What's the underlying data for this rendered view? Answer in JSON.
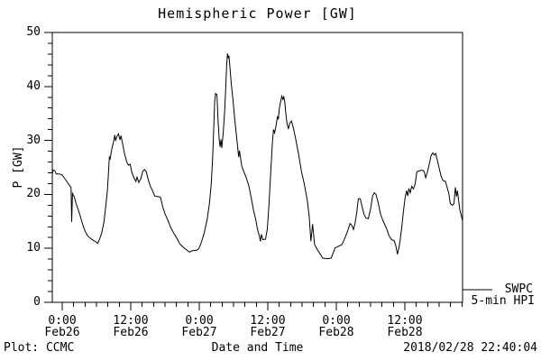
{
  "title": "Hemispheric Power [GW]",
  "footer": {
    "left": "Plot: CCMC",
    "center": "Date and Time",
    "right": "2018/02/28 22:40:04"
  },
  "legend": {
    "series": "SWPC",
    "sub": "5-min HPI"
  },
  "colors": {
    "line": "#000000",
    "axis": "#000000",
    "background": "#ffffff",
    "text": "#000000"
  },
  "chart_data": {
    "type": "line",
    "title": "Hemispheric Power [GW]",
    "xlabel": "Date and Time",
    "ylabel": "P [GW]",
    "ylim": [
      0,
      50
    ],
    "y_major_ticks": [
      0,
      10,
      20,
      30,
      40,
      50
    ],
    "y_minor_step": 2,
    "x_range_hours": [
      -1.74,
      70.1
    ],
    "x_unit": "hours since 2018-02-26 00:00 UT",
    "x_major_ticks": [
      {
        "hour": 0,
        "time": "0:00",
        "date": "Feb26"
      },
      {
        "hour": 12,
        "time": "12:00",
        "date": "Feb26"
      },
      {
        "hour": 24,
        "time": "0:00",
        "date": "Feb27"
      },
      {
        "hour": 36,
        "time": "12:00",
        "date": "Feb27"
      },
      {
        "hour": 48,
        "time": "0:00",
        "date": "Feb28"
      },
      {
        "hour": 60,
        "time": "12:00",
        "date": "Feb28"
      }
    ],
    "x_minor_step_hours": 2,
    "grid": false,
    "legend_position": "outside-right-bottom",
    "series": [
      {
        "name": "SWPC 5-min HPI",
        "points": [
          [
            -1.74,
            23.8
          ],
          [
            -1.6,
            24.5
          ],
          [
            -1.3,
            24.4
          ],
          [
            -1.05,
            23.8
          ],
          [
            -0.5,
            23.8
          ],
          [
            0.0,
            23.6
          ],
          [
            0.4,
            23.0
          ],
          [
            0.8,
            22.4
          ],
          [
            1.2,
            21.8
          ],
          [
            1.45,
            21.4
          ],
          [
            1.55,
            21.3
          ],
          [
            1.65,
            14.9
          ],
          [
            1.8,
            20.2
          ],
          [
            2.1,
            19.6
          ],
          [
            2.4,
            18.4
          ],
          [
            2.8,
            17.2
          ],
          [
            3.2,
            15.8
          ],
          [
            3.6,
            14.4
          ],
          [
            4.0,
            13.2
          ],
          [
            4.4,
            12.4
          ],
          [
            4.9,
            11.9
          ],
          [
            5.4,
            11.5
          ],
          [
            5.9,
            11.2
          ],
          [
            6.2,
            10.9
          ],
          [
            6.5,
            11.6
          ],
          [
            6.9,
            12.8
          ],
          [
            7.3,
            14.8
          ],
          [
            7.6,
            17.5
          ],
          [
            7.9,
            20.5
          ],
          [
            8.1,
            24.0
          ],
          [
            8.25,
            26.9
          ],
          [
            8.4,
            26.6
          ],
          [
            8.7,
            28.5
          ],
          [
            9.0,
            29.8
          ],
          [
            9.2,
            31.0
          ],
          [
            9.35,
            29.9
          ],
          [
            9.55,
            30.7
          ],
          [
            9.85,
            31.2
          ],
          [
            10.1,
            30.1
          ],
          [
            10.3,
            30.9
          ],
          [
            10.6,
            29.3
          ],
          [
            10.9,
            27.6
          ],
          [
            11.3,
            26.0
          ],
          [
            11.6,
            25.4
          ],
          [
            11.9,
            25.6
          ],
          [
            12.2,
            24.0
          ],
          [
            12.6,
            23.0
          ],
          [
            12.9,
            22.4
          ],
          [
            13.1,
            23.2
          ],
          [
            13.4,
            22.2
          ],
          [
            13.8,
            23.0
          ],
          [
            14.1,
            24.3
          ],
          [
            14.4,
            24.6
          ],
          [
            14.7,
            24.3
          ],
          [
            15.0,
            23.0
          ],
          [
            15.4,
            21.6
          ],
          [
            15.8,
            20.7
          ],
          [
            16.2,
            19.7
          ],
          [
            16.7,
            19.6
          ],
          [
            17.2,
            19.5
          ],
          [
            17.6,
            17.7
          ],
          [
            18.0,
            16.4
          ],
          [
            18.5,
            15.2
          ],
          [
            19.0,
            13.9
          ],
          [
            19.5,
            12.9
          ],
          [
            20.0,
            12.0
          ],
          [
            20.6,
            10.8
          ],
          [
            21.2,
            10.2
          ],
          [
            21.8,
            9.7
          ],
          [
            22.3,
            9.3
          ],
          [
            22.8,
            9.6
          ],
          [
            23.4,
            9.6
          ],
          [
            23.9,
            9.9
          ],
          [
            24.4,
            11.2
          ],
          [
            24.9,
            13.0
          ],
          [
            25.4,
            15.5
          ],
          [
            25.8,
            18.5
          ],
          [
            26.1,
            22.0
          ],
          [
            26.35,
            27.0
          ],
          [
            26.55,
            33.0
          ],
          [
            26.7,
            37.3
          ],
          [
            26.85,
            38.7
          ],
          [
            27.1,
            38.5
          ],
          [
            27.3,
            33.5
          ],
          [
            27.5,
            30.0
          ],
          [
            27.65,
            28.8
          ],
          [
            27.8,
            30.2
          ],
          [
            27.95,
            28.6
          ],
          [
            28.2,
            31.5
          ],
          [
            28.45,
            35.5
          ],
          [
            28.65,
            40.0
          ],
          [
            28.8,
            44.0
          ],
          [
            28.95,
            46.1
          ],
          [
            29.1,
            45.2
          ],
          [
            29.2,
            45.7
          ],
          [
            29.35,
            43.8
          ],
          [
            29.6,
            40.5
          ],
          [
            29.9,
            37.5
          ],
          [
            30.2,
            34.0
          ],
          [
            30.5,
            31.0
          ],
          [
            30.75,
            28.4
          ],
          [
            30.9,
            26.9
          ],
          [
            31.05,
            28.1
          ],
          [
            31.2,
            26.9
          ],
          [
            31.45,
            25.2
          ],
          [
            31.8,
            24.2
          ],
          [
            32.2,
            23.2
          ],
          [
            32.7,
            21.5
          ],
          [
            33.1,
            19.4
          ],
          [
            33.5,
            17.0
          ],
          [
            33.9,
            15.3
          ],
          [
            34.2,
            13.5
          ],
          [
            34.5,
            12.4
          ],
          [
            34.7,
            11.3
          ],
          [
            34.9,
            12.6
          ],
          [
            35.15,
            11.6
          ],
          [
            35.6,
            11.7
          ],
          [
            35.9,
            13.5
          ],
          [
            36.2,
            18.0
          ],
          [
            36.5,
            24.0
          ],
          [
            36.8,
            29.5
          ],
          [
            37.0,
            32.0
          ],
          [
            37.2,
            31.4
          ],
          [
            37.45,
            32.8
          ],
          [
            37.7,
            34.5
          ],
          [
            37.85,
            33.9
          ],
          [
            38.0,
            35.8
          ],
          [
            38.2,
            36.9
          ],
          [
            38.45,
            38.2
          ],
          [
            38.65,
            37.6
          ],
          [
            38.8,
            38.2
          ],
          [
            39.0,
            36.9
          ],
          [
            39.15,
            35.1
          ],
          [
            39.35,
            33.3
          ],
          [
            39.6,
            32.1
          ],
          [
            39.85,
            33.2
          ],
          [
            40.15,
            33.6
          ],
          [
            40.5,
            32.2
          ],
          [
            40.9,
            30.2
          ],
          [
            41.4,
            27.4
          ],
          [
            41.9,
            24.2
          ],
          [
            42.4,
            21.9
          ],
          [
            42.9,
            19.0
          ],
          [
            43.25,
            16.0
          ],
          [
            43.55,
            11.3
          ],
          [
            43.85,
            14.5
          ],
          [
            44.2,
            10.7
          ],
          [
            44.6,
            9.9
          ],
          [
            45.2,
            8.9
          ],
          [
            45.6,
            8.2
          ],
          [
            46.4,
            8.1
          ],
          [
            47.1,
            8.2
          ],
          [
            47.5,
            9.3
          ],
          [
            47.8,
            10.1
          ],
          [
            48.4,
            10.4
          ],
          [
            49.0,
            10.7
          ],
          [
            49.5,
            11.9
          ],
          [
            50.0,
            13.3
          ],
          [
            50.4,
            14.6
          ],
          [
            50.7,
            14.3
          ],
          [
            51.0,
            13.5
          ],
          [
            51.25,
            14.5
          ],
          [
            51.6,
            16.8
          ],
          [
            51.85,
            19.2
          ],
          [
            52.2,
            19.2
          ],
          [
            52.5,
            17.8
          ],
          [
            52.85,
            16.3
          ],
          [
            53.2,
            15.6
          ],
          [
            53.6,
            15.5
          ],
          [
            54.0,
            17.3
          ],
          [
            54.35,
            19.7
          ],
          [
            54.65,
            20.3
          ],
          [
            54.95,
            20.0
          ],
          [
            55.3,
            18.6
          ],
          [
            55.75,
            16.3
          ],
          [
            56.25,
            14.9
          ],
          [
            56.75,
            13.8
          ],
          [
            57.25,
            12.3
          ],
          [
            57.7,
            11.6
          ],
          [
            58.15,
            11.4
          ],
          [
            58.45,
            10.3
          ],
          [
            58.7,
            8.9
          ],
          [
            58.95,
            10.1
          ],
          [
            59.15,
            11.3
          ],
          [
            59.45,
            13.8
          ],
          [
            59.75,
            16.8
          ],
          [
            60.05,
            19.4
          ],
          [
            60.3,
            20.7
          ],
          [
            60.5,
            19.7
          ],
          [
            60.7,
            21.1
          ],
          [
            60.95,
            20.3
          ],
          [
            61.2,
            21.5
          ],
          [
            61.5,
            21.0
          ],
          [
            61.8,
            21.9
          ],
          [
            62.1,
            24.2
          ],
          [
            62.6,
            24.4
          ],
          [
            63.1,
            24.5
          ],
          [
            63.4,
            24.2
          ],
          [
            63.65,
            23.1
          ],
          [
            63.95,
            24.1
          ],
          [
            64.3,
            25.7
          ],
          [
            64.6,
            27.2
          ],
          [
            64.9,
            27.7
          ],
          [
            65.15,
            27.3
          ],
          [
            65.4,
            27.6
          ],
          [
            65.7,
            26.3
          ],
          [
            66.0,
            24.9
          ],
          [
            66.35,
            23.4
          ],
          [
            66.65,
            22.6
          ],
          [
            67.1,
            22.4
          ],
          [
            67.45,
            21.1
          ],
          [
            67.7,
            20.1
          ],
          [
            67.95,
            18.3
          ],
          [
            68.3,
            18.0
          ],
          [
            68.6,
            18.3
          ],
          [
            68.85,
            21.3
          ],
          [
            69.05,
            19.6
          ],
          [
            69.2,
            20.7
          ],
          [
            69.45,
            18.5
          ],
          [
            69.65,
            17.0
          ],
          [
            69.85,
            16.2
          ],
          [
            70.1,
            15.1
          ]
        ]
      }
    ]
  }
}
